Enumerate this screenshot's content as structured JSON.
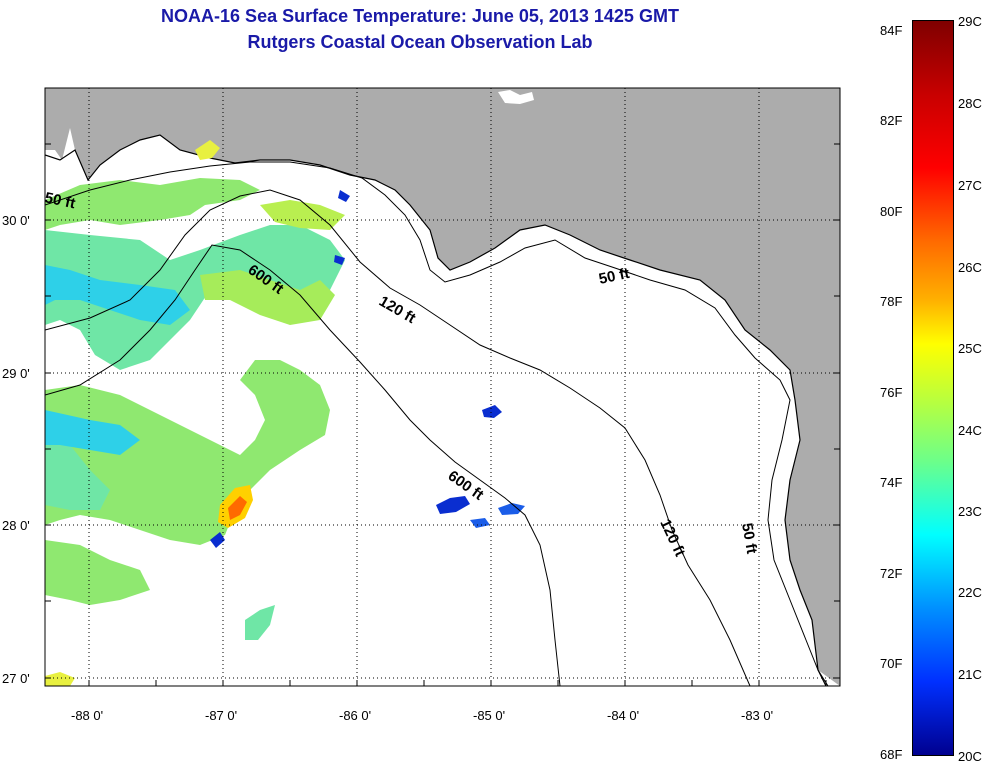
{
  "header": {
    "title": "NOAA-16 Sea Surface Temperature:  June 05, 2013 1425 GMT",
    "subtitle": "Rutgers Coastal Ocean Observation Lab"
  },
  "axes": {
    "lat_labels": [
      "30 0'",
      "29 0'",
      "28 0'",
      "27 0'"
    ],
    "lon_labels": [
      "-88 0'",
      "-87 0'",
      "-86 0'",
      "-85 0'",
      "-84 0'",
      "-83 0'"
    ]
  },
  "contours": {
    "shallow": "50 ft",
    "mid": "120 ft",
    "deep": "600 ft"
  },
  "colorbar": {
    "fahrenheit": [
      "84F",
      "82F",
      "80F",
      "78F",
      "76F",
      "74F",
      "72F",
      "70F",
      "68F"
    ],
    "celsius": [
      "29C",
      "28C",
      "27C",
      "26C",
      "25C",
      "24C",
      "23C",
      "22C",
      "21C",
      "20C"
    ]
  },
  "colors": {
    "land": "#acacac",
    "title": "#1a1aa8",
    "warm": "#ff6a00",
    "cold": "#0a2ed0"
  }
}
